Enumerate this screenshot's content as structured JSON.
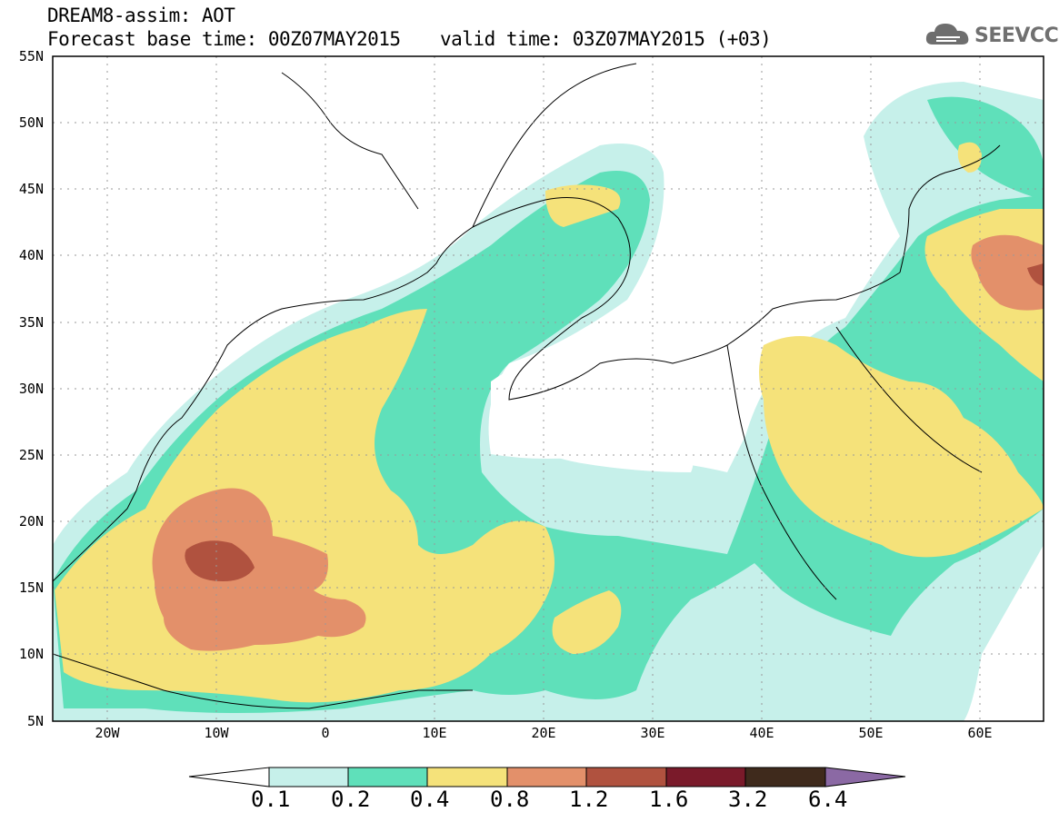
{
  "header": {
    "title": "DREAM8-assim: AOT",
    "forecast_base": "Forecast base time: 00Z07MAY2015",
    "valid_time": "valid time: 03Z07MAY2015 (+03)"
  },
  "logo": {
    "text": "SEEVCCC",
    "icon": "cloud-icon",
    "color": "#6e6e6e"
  },
  "map": {
    "lat_labels": [
      "55N",
      "50N",
      "45N",
      "40N",
      "35N",
      "30N",
      "25N",
      "20N",
      "15N",
      "10N",
      "5N"
    ],
    "lon_labels": [
      "20W",
      "10W",
      "0",
      "10E",
      "20E",
      "30E",
      "40E",
      "50E",
      "60E"
    ]
  },
  "colorbar": {
    "labels": [
      "0.1",
      "0.2",
      "0.4",
      "0.8",
      "1.2",
      "1.6",
      "3.2",
      "6.4"
    ],
    "colors": [
      "#c6f0ea",
      "#5fe0ba",
      "#f5e27a",
      "#e3906a",
      "#b0523f",
      "#7a1a2a",
      "#3f2a1c",
      "#8b69a4"
    ]
  }
}
